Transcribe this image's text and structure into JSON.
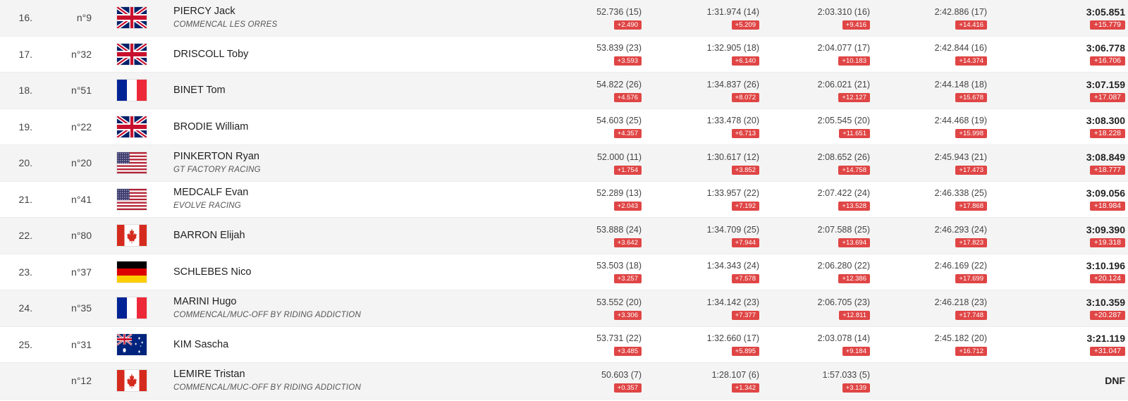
{
  "results": [
    {
      "pos": "16.",
      "bib": "n°9",
      "flag": "gb",
      "name": "PIERCY Jack",
      "team": "COMMENCAL LES ORRES",
      "splits": [
        {
          "t": "52.736 (15)",
          "g": "+2.490"
        },
        {
          "t": "1:31.974 (14)",
          "g": "+5.209"
        },
        {
          "t": "2:03.310 (16)",
          "g": "+9.416"
        },
        {
          "t": "2:42.886 (17)",
          "g": "+14.416"
        }
      ],
      "final": {
        "t": "3:05.851",
        "g": "+15.779"
      }
    },
    {
      "pos": "17.",
      "bib": "n°32",
      "flag": "gb",
      "name": "DRISCOLL Toby",
      "team": "",
      "splits": [
        {
          "t": "53.839 (23)",
          "g": "+3.593"
        },
        {
          "t": "1:32.905 (18)",
          "g": "+6.140"
        },
        {
          "t": "2:04.077 (17)",
          "g": "+10.183"
        },
        {
          "t": "2:42.844 (16)",
          "g": "+14.374"
        }
      ],
      "final": {
        "t": "3:06.778",
        "g": "+16.706"
      }
    },
    {
      "pos": "18.",
      "bib": "n°51",
      "flag": "fr",
      "name": "BINET Tom",
      "team": "",
      "splits": [
        {
          "t": "54.822 (26)",
          "g": "+4.576"
        },
        {
          "t": "1:34.837 (26)",
          "g": "+8.072"
        },
        {
          "t": "2:06.021 (21)",
          "g": "+12.127"
        },
        {
          "t": "2:44.148 (18)",
          "g": "+15.678"
        }
      ],
      "final": {
        "t": "3:07.159",
        "g": "+17.087"
      }
    },
    {
      "pos": "19.",
      "bib": "n°22",
      "flag": "gb",
      "name": "BRODIE William",
      "team": "",
      "splits": [
        {
          "t": "54.603 (25)",
          "g": "+4.357"
        },
        {
          "t": "1:33.478 (20)",
          "g": "+6.713"
        },
        {
          "t": "2:05.545 (20)",
          "g": "+11.651"
        },
        {
          "t": "2:44.468 (19)",
          "g": "+15.998"
        }
      ],
      "final": {
        "t": "3:08.300",
        "g": "+18.228"
      }
    },
    {
      "pos": "20.",
      "bib": "n°20",
      "flag": "us",
      "name": "PINKERTON Ryan",
      "team": "GT FACTORY RACING",
      "splits": [
        {
          "t": "52.000 (11)",
          "g": "+1.754"
        },
        {
          "t": "1:30.617 (12)",
          "g": "+3.852"
        },
        {
          "t": "2:08.652 (26)",
          "g": "+14.758"
        },
        {
          "t": "2:45.943 (21)",
          "g": "+17.473"
        }
      ],
      "final": {
        "t": "3:08.849",
        "g": "+18.777"
      }
    },
    {
      "pos": "21.",
      "bib": "n°41",
      "flag": "us",
      "name": "MEDCALF Evan",
      "team": "EVOLVE RACING",
      "splits": [
        {
          "t": "52.289 (13)",
          "g": "+2.043"
        },
        {
          "t": "1:33.957 (22)",
          "g": "+7.192"
        },
        {
          "t": "2:07.422 (24)",
          "g": "+13.528"
        },
        {
          "t": "2:46.338 (25)",
          "g": "+17.868"
        }
      ],
      "final": {
        "t": "3:09.056",
        "g": "+18.984"
      }
    },
    {
      "pos": "22.",
      "bib": "n°80",
      "flag": "ca",
      "name": "BARRON Elijah",
      "team": "",
      "splits": [
        {
          "t": "53.888 (24)",
          "g": "+3.642"
        },
        {
          "t": "1:34.709 (25)",
          "g": "+7.944"
        },
        {
          "t": "2:07.588 (25)",
          "g": "+13.694"
        },
        {
          "t": "2:46.293 (24)",
          "g": "+17.823"
        }
      ],
      "final": {
        "t": "3:09.390",
        "g": "+19.318"
      }
    },
    {
      "pos": "23.",
      "bib": "n°37",
      "flag": "de",
      "name": "SCHLEBES Nico",
      "team": "",
      "splits": [
        {
          "t": "53.503 (18)",
          "g": "+3.257"
        },
        {
          "t": "1:34.343 (24)",
          "g": "+7.578"
        },
        {
          "t": "2:06.280 (22)",
          "g": "+12.386"
        },
        {
          "t": "2:46.169 (22)",
          "g": "+17.699"
        }
      ],
      "final": {
        "t": "3:10.196",
        "g": "+20.124"
      }
    },
    {
      "pos": "24.",
      "bib": "n°35",
      "flag": "fr",
      "name": "MARINI Hugo",
      "team": "COMMENCAL/MUC-OFF BY RIDING ADDICTION",
      "splits": [
        {
          "t": "53.552 (20)",
          "g": "+3.306"
        },
        {
          "t": "1:34.142 (23)",
          "g": "+7.377"
        },
        {
          "t": "2:06.705 (23)",
          "g": "+12.811"
        },
        {
          "t": "2:46.218 (23)",
          "g": "+17.748"
        }
      ],
      "final": {
        "t": "3:10.359",
        "g": "+20.287"
      }
    },
    {
      "pos": "25.",
      "bib": "n°31",
      "flag": "au",
      "name": "KIM Sascha",
      "team": "",
      "splits": [
        {
          "t": "53.731 (22)",
          "g": "+3.485"
        },
        {
          "t": "1:32.660 (17)",
          "g": "+5.895"
        },
        {
          "t": "2:03.078 (14)",
          "g": "+9.184"
        },
        {
          "t": "2:45.182 (20)",
          "g": "+16.712"
        }
      ],
      "final": {
        "t": "3:21.119",
        "g": "+31.047"
      }
    },
    {
      "pos": "",
      "bib": "n°12",
      "flag": "ca",
      "name": "LEMIRE Tristan",
      "team": "COMMENCAL/MUC-OFF BY RIDING ADDICTION",
      "splits": [
        {
          "t": "50.603 (7)",
          "g": "+0.357"
        },
        {
          "t": "1:28.107 (6)",
          "g": "+1.342"
        },
        {
          "t": "1:57.033 (5)",
          "g": "+3.139"
        }
      ],
      "final": {
        "t": "DNF",
        "g": ""
      }
    }
  ],
  "colors": {
    "gap_badge": "#e04545",
    "row_alt": "#f4f4f4"
  }
}
